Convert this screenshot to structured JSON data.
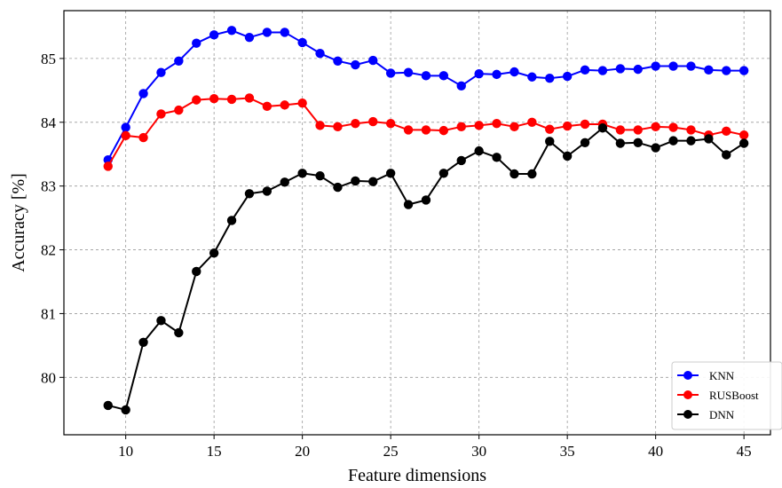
{
  "chart_data": {
    "type": "line",
    "title": "",
    "xlabel": "Feature dimensions",
    "ylabel": "Accuracy [%]",
    "xlim": [
      6.5,
      46.5
    ],
    "ylim": [
      79.1,
      85.75
    ],
    "xticks": [
      10,
      15,
      20,
      25,
      30,
      35,
      40,
      45
    ],
    "yticks": [
      80,
      81,
      82,
      83,
      84,
      85
    ],
    "grid": true,
    "legend_position": "bottom-right",
    "x": [
      9,
      10,
      11,
      12,
      13,
      14,
      15,
      16,
      17,
      18,
      19,
      20,
      21,
      22,
      23,
      24,
      25,
      26,
      27,
      28,
      29,
      30,
      31,
      32,
      33,
      34,
      35,
      36,
      37,
      38,
      39,
      40,
      41,
      42,
      43,
      44,
      45
    ],
    "series": [
      {
        "name": "KNN",
        "color": "#0000ff",
        "values": [
          83.41,
          83.92,
          84.45,
          84.78,
          84.96,
          85.24,
          85.37,
          85.44,
          85.33,
          85.41,
          85.41,
          85.25,
          85.08,
          84.96,
          84.9,
          84.97,
          84.77,
          84.78,
          84.73,
          84.73,
          84.57,
          84.76,
          84.75,
          84.79,
          84.71,
          84.69,
          84.72,
          84.82,
          84.81,
          84.84,
          84.83,
          84.88,
          84.88,
          84.88,
          84.82,
          84.81,
          84.81
        ]
      },
      {
        "name": "RUSBoost",
        "color": "#ff0000",
        "values": [
          83.31,
          83.79,
          83.76,
          84.13,
          84.19,
          84.35,
          84.37,
          84.36,
          84.38,
          84.25,
          84.27,
          84.3,
          83.95,
          83.93,
          83.98,
          84.01,
          83.98,
          83.88,
          83.88,
          83.87,
          83.93,
          83.95,
          83.98,
          83.93,
          84.0,
          83.89,
          83.94,
          83.97,
          83.97,
          83.88,
          83.88,
          83.93,
          83.92,
          83.88,
          83.8,
          83.86,
          83.8
        ]
      },
      {
        "name": "DNN",
        "color": "#000000",
        "values": [
          79.56,
          79.49,
          80.55,
          80.89,
          80.7,
          81.66,
          81.95,
          82.46,
          82.88,
          82.92,
          83.06,
          83.2,
          83.16,
          82.98,
          83.08,
          83.07,
          83.2,
          82.71,
          82.78,
          83.2,
          83.4,
          83.55,
          83.45,
          83.19,
          83.19,
          83.7,
          83.47,
          83.68,
          83.91,
          83.67,
          83.68,
          83.6,
          83.71,
          83.71,
          83.74,
          83.49,
          83.67
        ]
      }
    ]
  }
}
